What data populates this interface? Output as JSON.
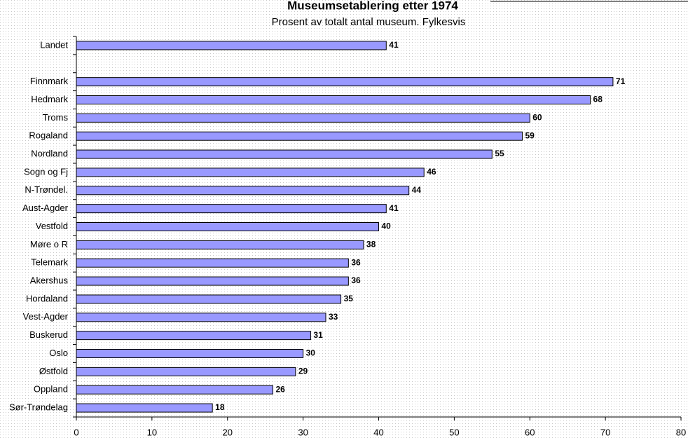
{
  "chart_data": {
    "type": "barh",
    "title": "Museumsetablering etter 1974",
    "subtitle": "Prosent av totalt antal museum.  Fylkesvis",
    "categories": [
      "Landet",
      null,
      "Finnmark",
      "Hedmark",
      "Troms",
      "Rogaland",
      "Nordland",
      "Sogn og Fj",
      "N-Trøndel.",
      "Aust-Agder",
      "Vestfold",
      "Møre o R",
      "Telemark",
      "Akershus",
      "Hordaland",
      "Vest-Agder",
      "Buskerud",
      "Oslo",
      "Østfold",
      "Oppland",
      "Sør-Trøndelag"
    ],
    "values": [
      41,
      null,
      71,
      68,
      60,
      59,
      55,
      46,
      44,
      41,
      40,
      38,
      36,
      36,
      35,
      33,
      31,
      30,
      29,
      26,
      18
    ],
    "color": "#9999ff",
    "xlim": [
      0,
      80
    ],
    "xticks": [
      0,
      10,
      20,
      30,
      40,
      50,
      60,
      70,
      80
    ]
  }
}
